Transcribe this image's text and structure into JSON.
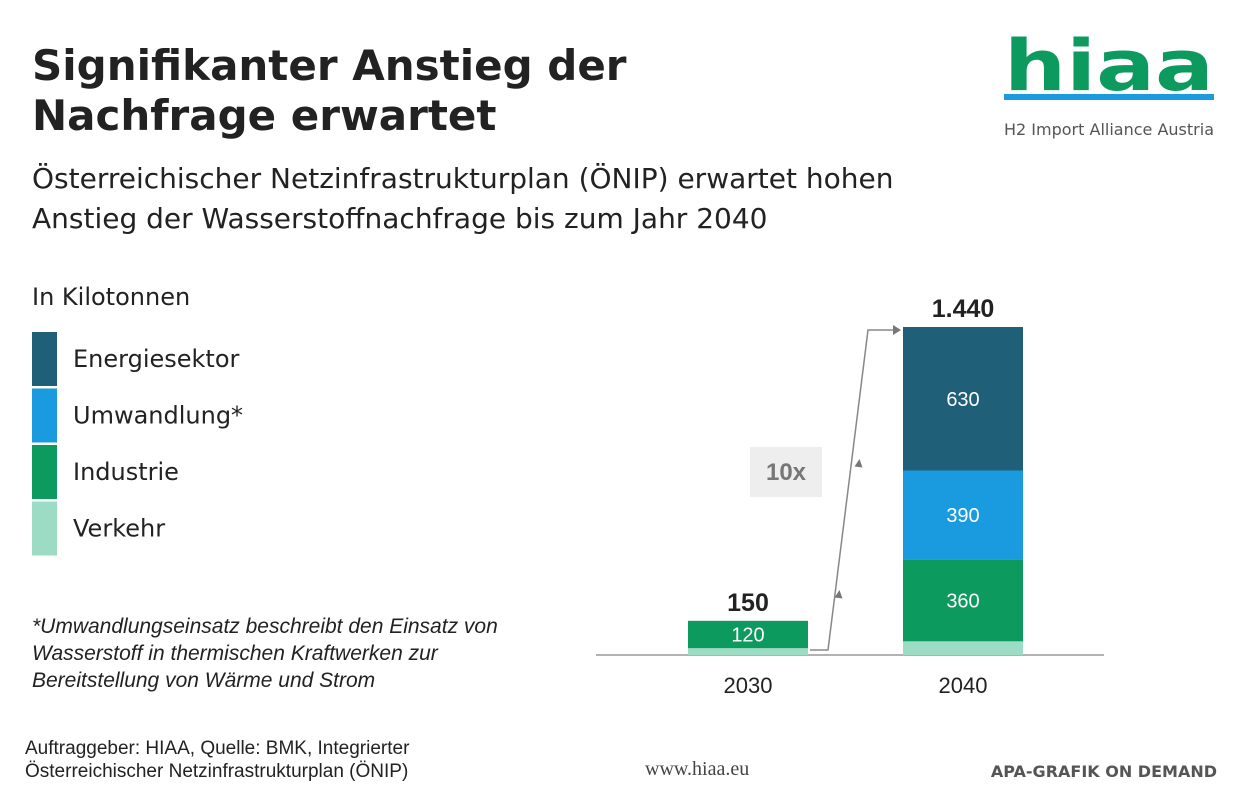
{
  "chart_data": {
    "type": "stacked-bar",
    "title": "Signifikanter Anstieg der Nachfrage erwartet",
    "subtitle": "Österreichischer Netzinfrastrukturplan (ÖNIP) erwartet hohen Anstieg der Wasserstoffnachfrage bis zum Jahr 2040",
    "unit_label": "In Kilotonnen",
    "categories": [
      "2030",
      "2040"
    ],
    "series": [
      {
        "name": "Verkehr",
        "color": "#9ddcc4",
        "values": [
          30,
          60
        ],
        "value_labels": [
          null,
          null
        ]
      },
      {
        "name": "Industrie",
        "color": "#0c9a5f",
        "values": [
          120,
          360
        ],
        "value_labels": [
          "120",
          "360"
        ]
      },
      {
        "name": "Umwandlung*",
        "color": "#1a9be0",
        "values": [
          0,
          390
        ],
        "value_labels": [
          null,
          "390"
        ]
      },
      {
        "name": "Energiesektor",
        "color": "#1f5f78",
        "values": [
          0,
          630
        ],
        "value_labels": [
          null,
          "630"
        ]
      }
    ],
    "totals": {
      "values": [
        150,
        1440
      ],
      "value_labels": [
        "150",
        "1.440"
      ]
    },
    "annotation": "10x",
    "footnote": "*Umwandlungseinsatz beschreibt den Einsatz von Wasserstoff in thermischen Kraftwerken zur Bereitstellung von Wärme und Strom",
    "source": "Auftraggeber: HIAA, Quelle: BMK, Integrierter Österreichischer Netzinfrastrukturplan (ÖNIP)",
    "website": "www.hiaa.eu",
    "credit": "APA-GRAFIK ON DEMAND",
    "logo": {
      "name": "hiaa",
      "tagline": "H2 Import Alliance Austria"
    }
  }
}
